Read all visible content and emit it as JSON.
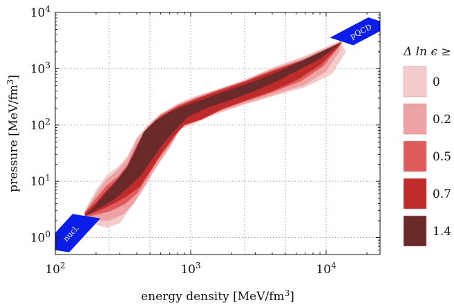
{
  "chart_data": {
    "type": "area",
    "x_scale": "log",
    "y_scale": "log",
    "xlim": [
      100,
      25000
    ],
    "ylim": [
      0.5,
      10000
    ],
    "x_ticks": [
      {
        "value": 100,
        "mantissa": "10",
        "exp": "2"
      },
      {
        "value": 1000,
        "mantissa": "10",
        "exp": "3"
      },
      {
        "value": 10000,
        "mantissa": "10",
        "exp": "4"
      }
    ],
    "y_ticks": [
      {
        "value": 1,
        "mantissa": "10",
        "exp": "0"
      },
      {
        "value": 10,
        "mantissa": "10",
        "exp": "1"
      },
      {
        "value": 100,
        "mantissa": "10",
        "exp": "2"
      },
      {
        "value": 1000,
        "mantissa": "10",
        "exp": "3"
      },
      {
        "value": 10000,
        "mantissa": "10",
        "exp": "4"
      }
    ],
    "xlabel": {
      "text": "energy density [MeV/fm",
      "sup": "3",
      "end": "]"
    },
    "ylabel": {
      "text": "pressure [MeV/fm",
      "sup": "3",
      "end": "]"
    },
    "grid": "dotted",
    "legend": {
      "title": "Δ ln ϵ ≥",
      "placement": "right",
      "entries": [
        {
          "label": "0",
          "color": "#f4cccc"
        },
        {
          "label": "0.2",
          "color": "#eda3a3"
        },
        {
          "label": "0.5",
          "color": "#de5c5c"
        },
        {
          "label": "0.7",
          "color": "#bf2a2a"
        },
        {
          "label": "1.4",
          "color": "#6b2a2a"
        }
      ]
    },
    "bands": {
      "nuclear": {
        "label": "nucl.",
        "color": "#0b1de8",
        "points": [
          [
            100,
            0.6
          ],
          [
            170,
            2.4
          ]
        ],
        "half_width_decades": 0.11
      },
      "pqcd": {
        "label": "pQCD",
        "color": "#0b1de8",
        "points": [
          [
            13000,
            3050
          ],
          [
            25000,
            7000
          ]
        ],
        "half_width_decades": 0.11
      }
    },
    "series": [
      {
        "name": "0",
        "color": "#f4cccc",
        "upper": [
          [
            165,
            3
          ],
          [
            200,
            7
          ],
          [
            240,
            13
          ],
          [
            290,
            18
          ],
          [
            340,
            28
          ],
          [
            400,
            60
          ],
          [
            480,
            100
          ],
          [
            600,
            160
          ],
          [
            800,
            240
          ],
          [
            1100,
            330
          ],
          [
            1600,
            440
          ],
          [
            2500,
            640
          ],
          [
            4000,
            1050
          ],
          [
            7000,
            1700
          ],
          [
            13000,
            3200
          ]
        ],
        "lower": [
          [
            165,
            2.1
          ],
          [
            200,
            1.7
          ],
          [
            240,
            1.5
          ],
          [
            300,
            1.8
          ],
          [
            360,
            3.4
          ],
          [
            420,
            6
          ],
          [
            500,
            12
          ],
          [
            620,
            28
          ],
          [
            800,
            80
          ],
          [
            1100,
            110
          ],
          [
            1600,
            160
          ],
          [
            2500,
            230
          ],
          [
            4000,
            320
          ],
          [
            7000,
            470
          ],
          [
            11000,
            800
          ],
          [
            14000,
            2000
          ],
          [
            13000,
            2800
          ]
        ]
      },
      {
        "name": "0.2",
        "color": "#eda3a3",
        "upper": [
          [
            165,
            2.9
          ],
          [
            200,
            6
          ],
          [
            240,
            11
          ],
          [
            290,
            16
          ],
          [
            340,
            25
          ],
          [
            400,
            55
          ],
          [
            480,
            95
          ],
          [
            600,
            155
          ],
          [
            800,
            230
          ],
          [
            1100,
            320
          ],
          [
            1600,
            430
          ],
          [
            2500,
            620
          ],
          [
            4000,
            1000
          ],
          [
            7000,
            1600
          ],
          [
            13000,
            3100
          ]
        ],
        "lower": [
          [
            165,
            2.2
          ],
          [
            200,
            2
          ],
          [
            250,
            2
          ],
          [
            320,
            2.6
          ],
          [
            380,
            4
          ],
          [
            450,
            7.5
          ],
          [
            550,
            17
          ],
          [
            700,
            40
          ],
          [
            850,
            90
          ],
          [
            1100,
            115
          ],
          [
            1600,
            170
          ],
          [
            2500,
            240
          ],
          [
            4000,
            340
          ],
          [
            7000,
            520
          ],
          [
            10000,
            900
          ],
          [
            12500,
            2000
          ],
          [
            13000,
            2900
          ]
        ]
      },
      {
        "name": "0.5",
        "color": "#de5c5c",
        "upper": [
          [
            165,
            2.8
          ],
          [
            200,
            5
          ],
          [
            240,
            8.5
          ],
          [
            290,
            12
          ],
          [
            340,
            20
          ],
          [
            400,
            45
          ],
          [
            480,
            90
          ],
          [
            600,
            150
          ],
          [
            800,
            220
          ],
          [
            1100,
            300
          ],
          [
            1600,
            420
          ],
          [
            2500,
            600
          ],
          [
            4000,
            950
          ],
          [
            7000,
            1500
          ],
          [
            13000,
            3000
          ]
        ],
        "lower": [
          [
            165,
            2.3
          ],
          [
            210,
            2.6
          ],
          [
            260,
            3
          ],
          [
            330,
            4
          ],
          [
            400,
            6
          ],
          [
            480,
            12
          ],
          [
            580,
            25
          ],
          [
            720,
            50
          ],
          [
            850,
            95
          ],
          [
            1100,
            120
          ],
          [
            1600,
            180
          ],
          [
            2500,
            260
          ],
          [
            4000,
            380
          ],
          [
            6500,
            600
          ],
          [
            9500,
            1100
          ],
          [
            12000,
            2200
          ],
          [
            13000,
            2900
          ]
        ]
      },
      {
        "name": "0.7",
        "color": "#bf2a2a",
        "upper": [
          [
            165,
            2.7
          ],
          [
            200,
            4.2
          ],
          [
            240,
            7
          ],
          [
            290,
            11
          ],
          [
            340,
            18
          ],
          [
            400,
            40
          ],
          [
            480,
            85
          ],
          [
            600,
            140
          ],
          [
            800,
            210
          ],
          [
            1100,
            290
          ],
          [
            1600,
            400
          ],
          [
            2500,
            580
          ],
          [
            4000,
            900
          ],
          [
            7000,
            1450
          ],
          [
            13000,
            2950
          ]
        ],
        "lower": [
          [
            165,
            2.4
          ],
          [
            210,
            3
          ],
          [
            270,
            4
          ],
          [
            340,
            5.5
          ],
          [
            420,
            8
          ],
          [
            500,
            15
          ],
          [
            600,
            30
          ],
          [
            740,
            60
          ],
          [
            900,
            100
          ],
          [
            1200,
            125
          ],
          [
            1700,
            190
          ],
          [
            2600,
            280
          ],
          [
            4000,
            400
          ],
          [
            6000,
            620
          ],
          [
            9000,
            1150
          ],
          [
            12000,
            2300
          ],
          [
            13000,
            2900
          ]
        ]
      },
      {
        "name": "1.4",
        "color": "#6b2a2a",
        "upper": [
          [
            170,
            2.6
          ],
          [
            200,
            3.8
          ],
          [
            240,
            6.5
          ],
          [
            290,
            11
          ],
          [
            340,
            18
          ],
          [
            390,
            35
          ],
          [
            450,
            75
          ],
          [
            550,
            120
          ],
          [
            700,
            170
          ],
          [
            900,
            220
          ],
          [
            1200,
            280
          ],
          [
            1700,
            380
          ],
          [
            2500,
            520
          ],
          [
            4000,
            800
          ],
          [
            6500,
            1350
          ],
          [
            10000,
            2200
          ],
          [
            13000,
            2900
          ]
        ],
        "lower": [
          [
            170,
            2.5
          ],
          [
            220,
            3.5
          ],
          [
            280,
            5
          ],
          [
            350,
            8
          ],
          [
            430,
            13
          ],
          [
            520,
            25
          ],
          [
            640,
            50
          ],
          [
            780,
            85
          ],
          [
            950,
            140
          ],
          [
            1300,
            200
          ],
          [
            1900,
            270
          ],
          [
            2800,
            380
          ],
          [
            4000,
            550
          ],
          [
            6000,
            900
          ],
          [
            9000,
            1500
          ],
          [
            12000,
            2500
          ],
          [
            13000,
            2850
          ]
        ]
      }
    ]
  }
}
